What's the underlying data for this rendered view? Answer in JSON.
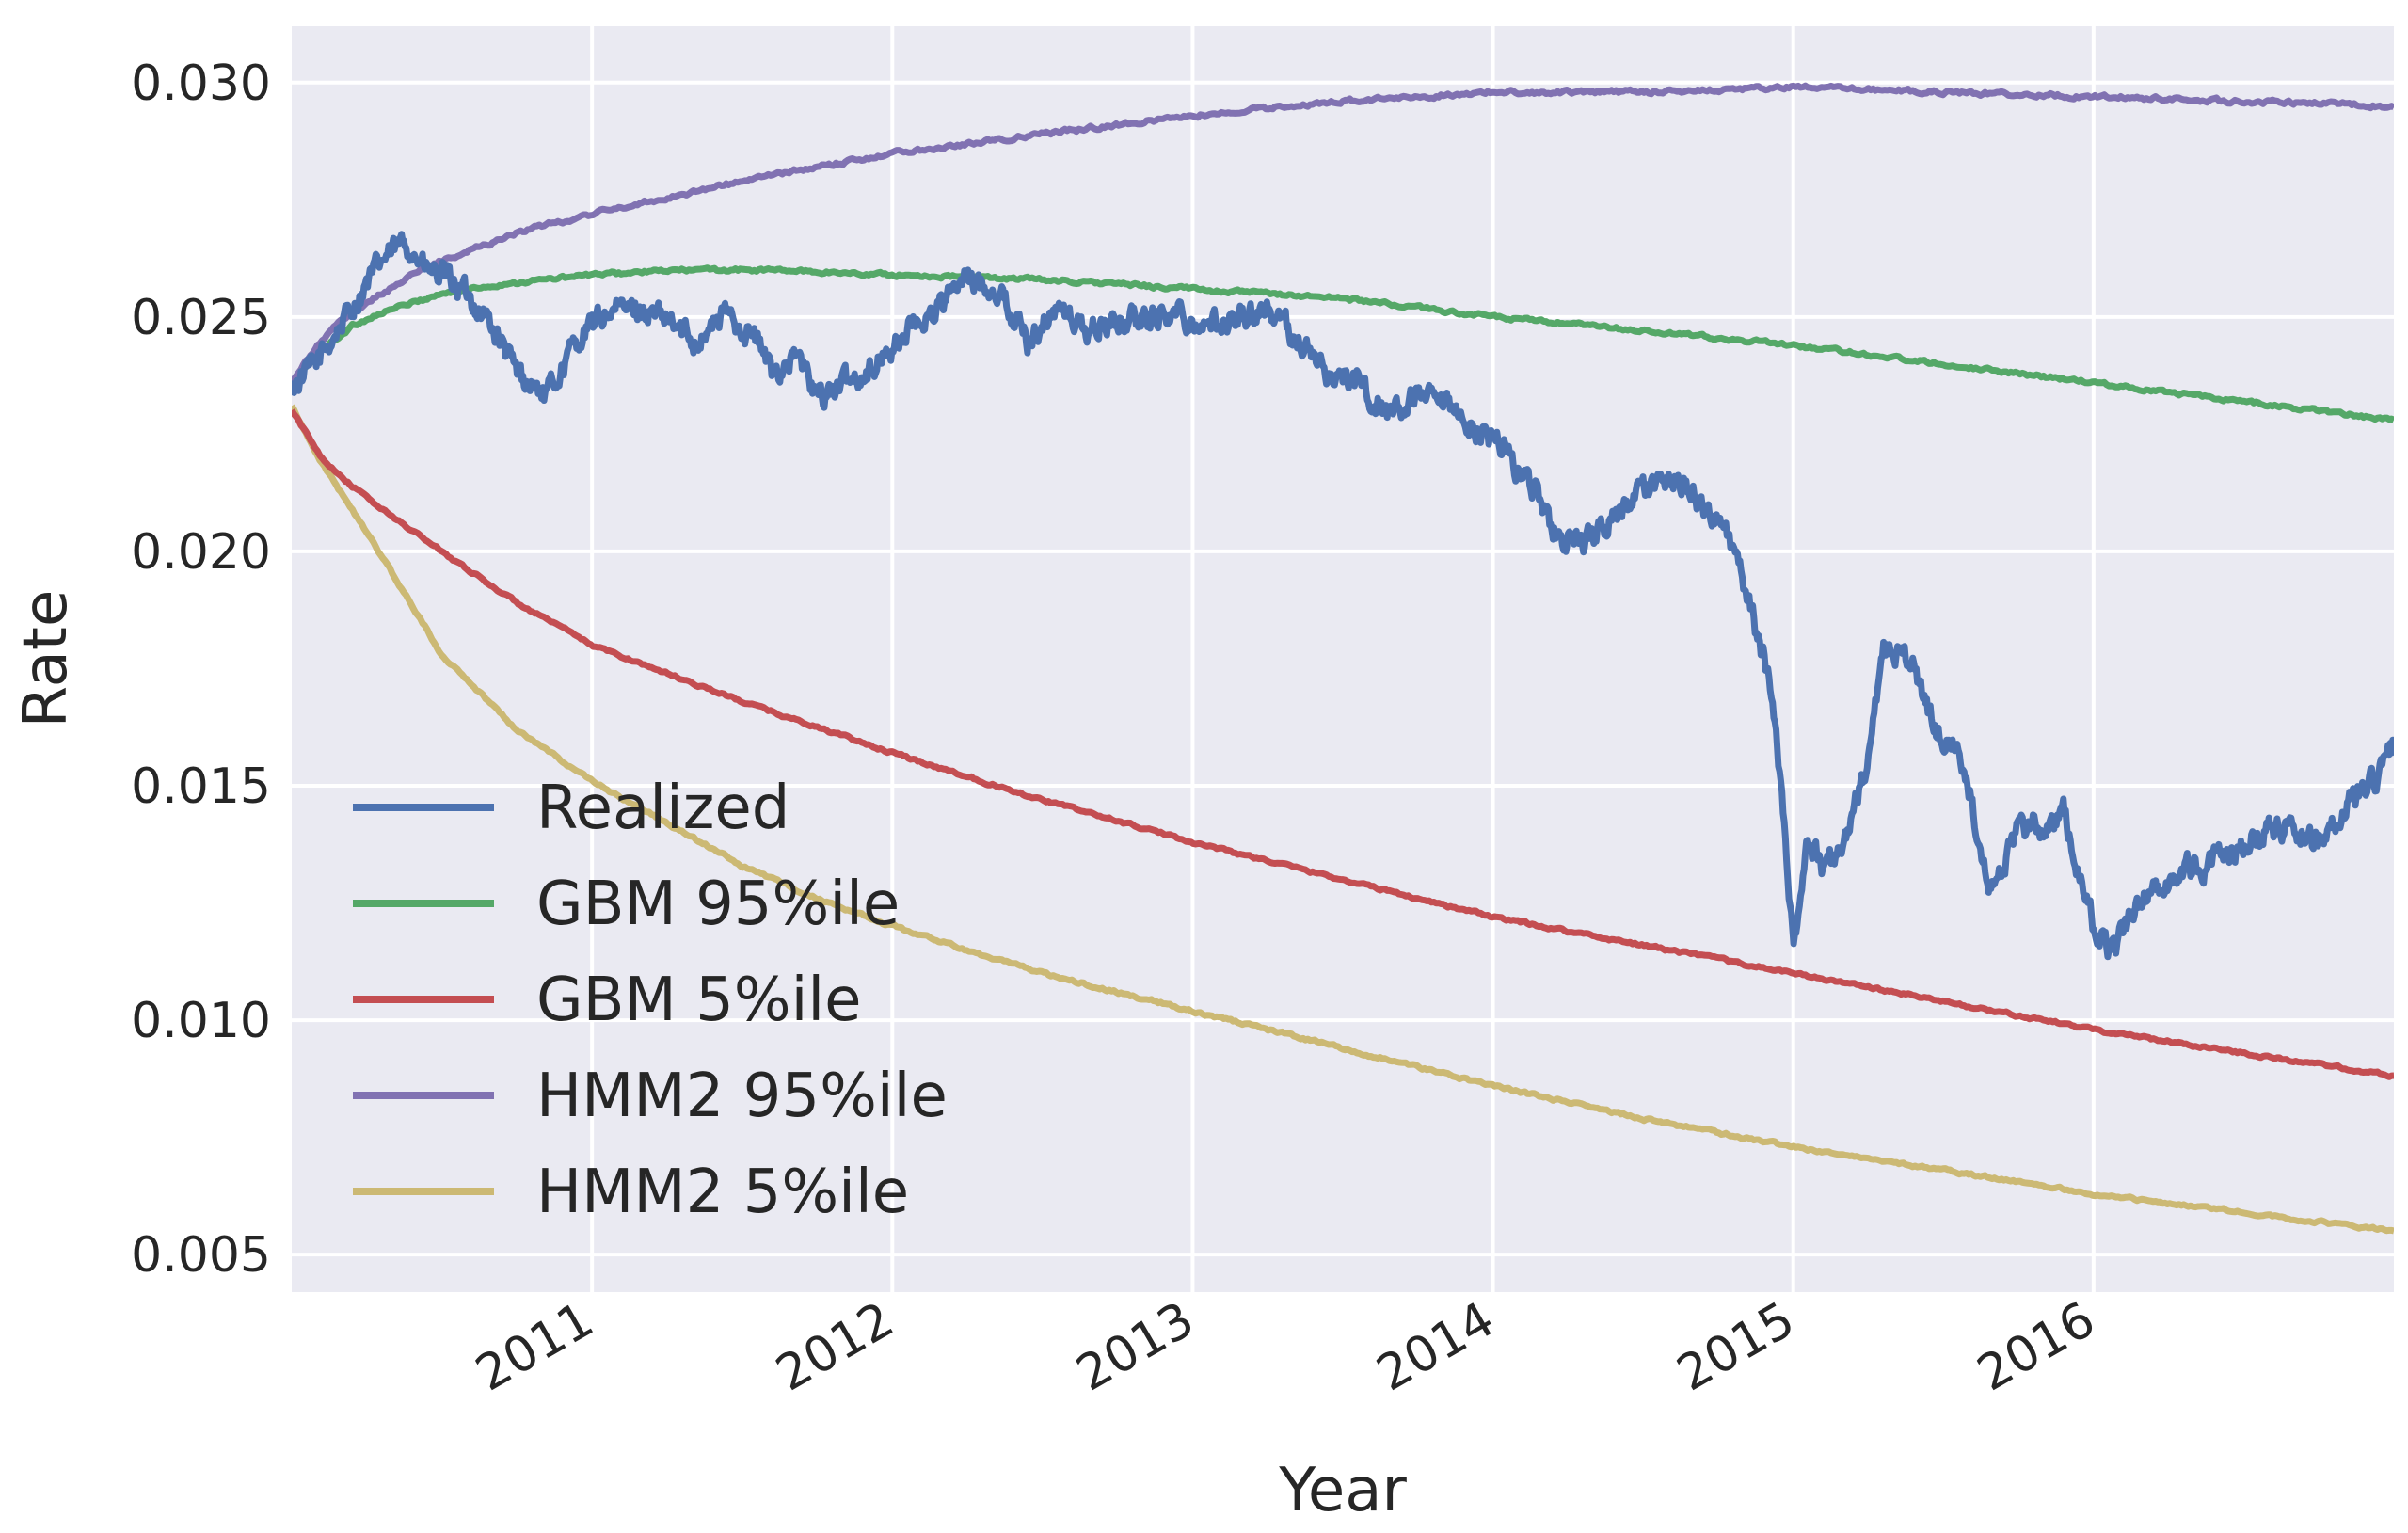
{
  "chart_data": {
    "type": "line",
    "title": "",
    "xlabel": "Year",
    "ylabel": "Rate",
    "xlim": [
      2010.0,
      2017.0
    ],
    "ylim": [
      0.0042,
      0.0312
    ],
    "grid": true,
    "legend_position": "lower-left",
    "x_ticks": [
      {
        "value": 2011,
        "label": "2011"
      },
      {
        "value": 2012,
        "label": "2012"
      },
      {
        "value": 2013,
        "label": "2013"
      },
      {
        "value": 2014,
        "label": "2014"
      },
      {
        "value": 2015,
        "label": "2015"
      },
      {
        "value": 2016,
        "label": "2016"
      }
    ],
    "y_ticks": [
      {
        "value": 0.005,
        "label": "0.005"
      },
      {
        "value": 0.01,
        "label": "0.010"
      },
      {
        "value": 0.015,
        "label": "0.015"
      },
      {
        "value": 0.02,
        "label": "0.020"
      },
      {
        "value": 0.025,
        "label": "0.025"
      },
      {
        "value": 0.03,
        "label": "0.030"
      }
    ],
    "series": [
      {
        "name": "Realized",
        "color": "#4c72b0",
        "x": [
          2010.0,
          2010.08,
          2010.2,
          2010.3,
          2010.38,
          2010.45,
          2010.55,
          2010.65,
          2010.75,
          2010.85,
          2010.95,
          2011.05,
          2011.15,
          2011.25,
          2011.35,
          2011.45,
          2011.55,
          2011.6,
          2011.68,
          2011.75,
          2011.85,
          2011.95,
          2012.05,
          2012.15,
          2012.25,
          2012.35,
          2012.45,
          2012.55,
          2012.65,
          2012.75,
          2012.85,
          2012.95,
          2013.05,
          2013.15,
          2013.25,
          2013.35,
          2013.45,
          2013.55,
          2013.65,
          2013.75,
          2013.85,
          2013.95,
          2014.05,
          2014.1,
          2014.15,
          2014.2,
          2014.3,
          2014.4,
          2014.5,
          2014.6,
          2014.7,
          2014.75,
          2014.8,
          2014.85,
          2014.88,
          2014.92,
          2014.94,
          2014.96,
          2014.98,
          2015.0,
          2015.05,
          2015.1,
          2015.15,
          2015.2,
          2015.25,
          2015.3,
          2015.35,
          2015.4,
          2015.45,
          2015.5,
          2015.55,
          2015.6,
          2015.65,
          2015.7,
          2015.75,
          2015.8,
          2015.85,
          2015.9,
          2015.95,
          2016.0,
          2016.05,
          2016.1,
          2016.15,
          2016.2,
          2016.25,
          2016.3,
          2016.35,
          2016.45,
          2016.55,
          2016.65,
          2016.75,
          2016.85,
          2016.95,
          2017.0
        ],
        "y": [
          0.0235,
          0.024,
          0.0252,
          0.0262,
          0.0266,
          0.026,
          0.0257,
          0.025,
          0.0238,
          0.0233,
          0.0245,
          0.0251,
          0.0252,
          0.0249,
          0.0245,
          0.0251,
          0.0245,
          0.0238,
          0.0242,
          0.0233,
          0.0236,
          0.024,
          0.0247,
          0.0252,
          0.0258,
          0.0256,
          0.0245,
          0.0252,
          0.0247,
          0.0249,
          0.025,
          0.0251,
          0.0248,
          0.025,
          0.0252,
          0.0245,
          0.0238,
          0.0236,
          0.0229,
          0.0233,
          0.023,
          0.0226,
          0.0222,
          0.0215,
          0.0213,
          0.0204,
          0.0201,
          0.0207,
          0.0213,
          0.0216,
          0.021,
          0.0206,
          0.02,
          0.019,
          0.0182,
          0.0172,
          0.0165,
          0.015,
          0.0132,
          0.0118,
          0.0138,
          0.0132,
          0.0135,
          0.0144,
          0.0155,
          0.018,
          0.0178,
          0.0176,
          0.0165,
          0.016,
          0.0158,
          0.0145,
          0.013,
          0.0133,
          0.014,
          0.0142,
          0.014,
          0.0145,
          0.013,
          0.012,
          0.0115,
          0.0119,
          0.0125,
          0.013,
          0.0128,
          0.0133,
          0.0132,
          0.0136,
          0.014,
          0.0142,
          0.0138,
          0.0146,
          0.0152,
          0.0159
        ]
      },
      {
        "name": "GBM 95%ile",
        "color": "#55a868",
        "x": [
          2010.0,
          2010.1,
          2010.2,
          2010.3,
          2010.4,
          2010.5,
          2010.7,
          2011.0,
          2011.3,
          2011.6,
          2012.0,
          2012.5,
          2013.0,
          2013.5,
          2014.0,
          2014.5,
          2015.0,
          2015.5,
          2016.0,
          2016.5,
          2017.0
        ],
        "y": [
          0.0236,
          0.0243,
          0.0248,
          0.0251,
          0.0253,
          0.0255,
          0.0257,
          0.0259,
          0.026,
          0.026,
          0.0259,
          0.0258,
          0.0256,
          0.0254,
          0.025,
          0.0247,
          0.0244,
          0.024,
          0.0236,
          0.0232,
          0.0228
        ]
      },
      {
        "name": "GBM 5%ile",
        "color": "#c44e52",
        "x": [
          2010.0,
          2010.1,
          2010.2,
          2010.3,
          2010.5,
          2010.75,
          2011.0,
          2011.5,
          2012.0,
          2012.5,
          2013.0,
          2013.5,
          2014.0,
          2014.5,
          2015.0,
          2015.5,
          2016.0,
          2016.5,
          2017.0
        ],
        "y": [
          0.023,
          0.022,
          0.0214,
          0.0209,
          0.02,
          0.0189,
          0.018,
          0.0168,
          0.0157,
          0.0147,
          0.0138,
          0.013,
          0.0122,
          0.0116,
          0.011,
          0.0104,
          0.0098,
          0.0093,
          0.0088
        ]
      },
      {
        "name": "HMM2 95%ile",
        "color": "#8172b2",
        "x": [
          2010.0,
          2010.1,
          2010.2,
          2010.3,
          2010.4,
          2010.5,
          2010.75,
          2011.0,
          2011.5,
          2012.0,
          2012.5,
          2013.0,
          2013.5,
          2014.0,
          2014.5,
          2015.0,
          2015.5,
          2016.0,
          2016.5,
          2017.0
        ],
        "y": [
          0.0236,
          0.0245,
          0.0251,
          0.0255,
          0.0259,
          0.0262,
          0.0268,
          0.0272,
          0.0279,
          0.0285,
          0.0289,
          0.0293,
          0.0296,
          0.0298,
          0.0298,
          0.0299,
          0.0298,
          0.0297,
          0.0296,
          0.0295
        ]
      },
      {
        "name": "HMM2 5%ile",
        "color": "#ccb974",
        "x": [
          2010.0,
          2010.1,
          2010.2,
          2010.3,
          2010.5,
          2010.75,
          2011.0,
          2011.25,
          2011.5,
          2011.75,
          2012.0,
          2012.5,
          2013.0,
          2013.5,
          2014.0,
          2014.5,
          2015.0,
          2015.5,
          2016.0,
          2016.5,
          2017.0
        ],
        "y": [
          0.0231,
          0.0219,
          0.0209,
          0.0199,
          0.0178,
          0.0162,
          0.0151,
          0.0142,
          0.0133,
          0.0126,
          0.012,
          0.011,
          0.0102,
          0.0094,
          0.0086,
          0.0079,
          0.0073,
          0.0068,
          0.0063,
          0.0059,
          0.0055
        ]
      }
    ]
  }
}
